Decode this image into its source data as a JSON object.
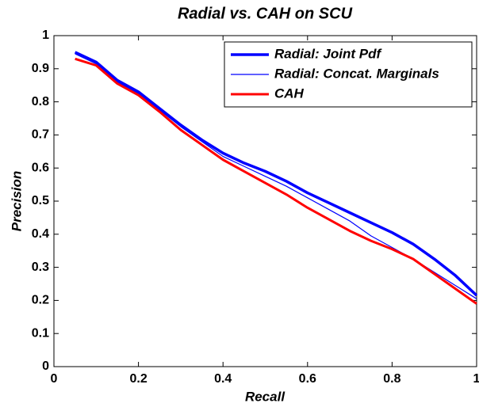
{
  "chart_data": {
    "type": "line",
    "title": "Radial vs. CAH on SCU",
    "x_label": "Recall",
    "y_label": "Precision",
    "x": [
      0.05,
      0.1,
      0.15,
      0.2,
      0.25,
      0.3,
      0.35,
      0.4,
      0.45,
      0.5,
      0.55,
      0.6,
      0.65,
      0.7,
      0.75,
      0.8,
      0.85,
      0.9,
      0.95,
      1.0
    ],
    "series": [
      {
        "name": "Radial: Joint Pdf",
        "color": "#0000ff",
        "linewidth": 3.5,
        "values": [
          0.95,
          0.92,
          0.865,
          0.83,
          0.78,
          0.73,
          0.685,
          0.645,
          0.615,
          0.59,
          0.56,
          0.525,
          0.495,
          0.465,
          0.435,
          0.405,
          0.37,
          0.325,
          0.275,
          0.215
        ]
      },
      {
        "name": "Radial: Concat. Marginals",
        "color": "#0000ff",
        "linewidth": 1.2,
        "values": [
          0.945,
          0.915,
          0.86,
          0.825,
          0.775,
          0.725,
          0.68,
          0.635,
          0.605,
          0.575,
          0.545,
          0.51,
          0.475,
          0.44,
          0.395,
          0.36,
          0.325,
          0.285,
          0.245,
          0.205
        ]
      },
      {
        "name": "CAH",
        "color": "#ff0000",
        "linewidth": 3,
        "values": [
          0.93,
          0.91,
          0.855,
          0.82,
          0.77,
          0.715,
          0.67,
          0.625,
          0.59,
          0.555,
          0.52,
          0.48,
          0.445,
          0.41,
          0.38,
          0.355,
          0.325,
          0.28,
          0.235,
          0.19
        ]
      }
    ],
    "xlim": [
      0,
      1
    ],
    "xticks": [
      0,
      0.2,
      0.4,
      0.6,
      0.8,
      1
    ],
    "ylim": [
      0,
      1
    ],
    "yticks": [
      0,
      0.1,
      0.2,
      0.3,
      0.4,
      0.5,
      0.6,
      0.7,
      0.8,
      0.9,
      1
    ],
    "grid": false,
    "legend": "upper right"
  }
}
